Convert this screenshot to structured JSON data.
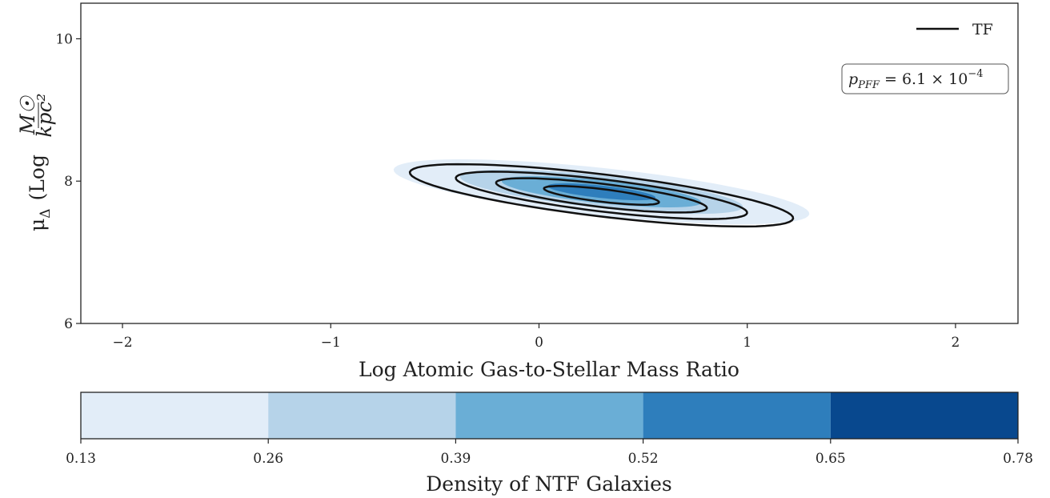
{
  "chart_data": {
    "type": "contour",
    "title": "",
    "xlabel": "Log Atomic Gas-to-Stellar Mass Ratio",
    "ylabel": "μΔ (Log M☉/kpc²)",
    "ylabel_parts": {
      "symbol": "μ",
      "sub": "Δ",
      "paren_open": "(",
      "log": "Log",
      "num": "M☉",
      "den": "kpc²",
      "paren_close": ")"
    },
    "xlim": [
      -2.2,
      2.3
    ],
    "ylim": [
      6.0,
      10.5
    ],
    "xticks": [
      -2,
      -1,
      0,
      1,
      2
    ],
    "xtick_labels": [
      "−2",
      "−1",
      "0",
      "1",
      "2"
    ],
    "yticks": [
      6,
      8,
      10
    ],
    "ytick_labels": [
      "6",
      "8",
      "10"
    ],
    "grid": false,
    "filled_series": {
      "name": "NTF",
      "shape": {
        "center": [
          0.3,
          7.85
        ],
        "angle_deg": -19,
        "semi_major": 1.05,
        "semi_minor": 0.32
      },
      "levels": [
        {
          "scale": 1.0,
          "color": "#e2edf8"
        },
        {
          "scale": 0.68,
          "color": "#b6d3e9"
        },
        {
          "scale": 0.48,
          "color": "#6aaed6"
        },
        {
          "scale": 0.26,
          "color": "#2e7ebc"
        }
      ]
    },
    "line_series": {
      "name": "TF",
      "color": "#111111",
      "shape": {
        "center": [
          0.3,
          7.8
        ],
        "angle_deg": -21,
        "semi_major": 0.98,
        "semi_minor": 0.28
      },
      "levels": [
        1.0,
        0.76,
        0.55,
        0.3
      ]
    },
    "legend": {
      "position": "top-right",
      "entries": [
        {
          "label": "TF",
          "style": "line"
        }
      ]
    },
    "annotation": {
      "position": "top-right",
      "base": "p",
      "sub": "PFF",
      "rest": " = 6.1 × 10",
      "sup": "−4"
    },
    "colorbar": {
      "label": "Density of NTF Galaxies",
      "orientation": "horizontal",
      "boundaries": [
        0.13,
        0.26,
        0.39,
        0.52,
        0.65,
        0.78
      ],
      "tick_labels": [
        "0.13",
        "0.26",
        "0.39",
        "0.52",
        "0.65",
        "0.78"
      ],
      "colors": [
        "#e2edf8",
        "#b6d3e9",
        "#6aaed6",
        "#2e7ebc",
        "#08488e"
      ]
    }
  }
}
